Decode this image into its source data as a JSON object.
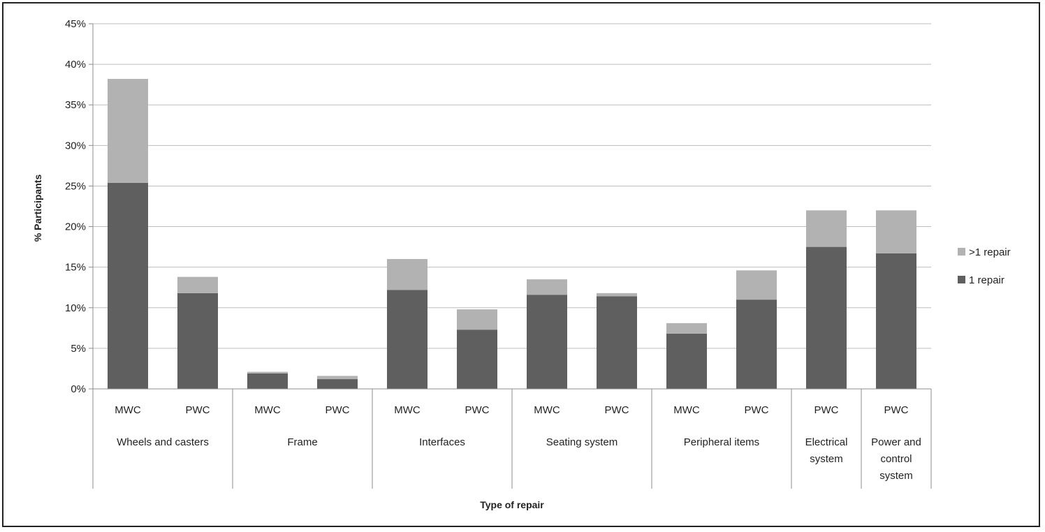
{
  "chart_data": {
    "type": "bar",
    "stacked": true,
    "groups": [
      {
        "label": "Wheels and casters",
        "categories": [
          "MWC",
          "PWC"
        ]
      },
      {
        "label": "Frame",
        "categories": [
          "MWC",
          "PWC"
        ]
      },
      {
        "label": "Interfaces",
        "categories": [
          "MWC",
          "PWC"
        ]
      },
      {
        "label": "Seating system",
        "categories": [
          "MWC",
          "PWC"
        ]
      },
      {
        "label": "Peripheral items",
        "categories": [
          "MWC",
          "PWC"
        ]
      },
      {
        "label": "Electrical system",
        "label_lines": [
          "Electrical",
          "system"
        ],
        "categories": [
          "PWC"
        ]
      },
      {
        "label": "Power and control system",
        "label_lines": [
          "Power and",
          "control",
          "system"
        ],
        "categories": [
          "PWC"
        ]
      }
    ],
    "categories": [
      "MWC",
      "PWC",
      "MWC",
      "PWC",
      "MWC",
      "PWC",
      "MWC",
      "PWC",
      "MWC",
      "PWC",
      "PWC",
      "PWC"
    ],
    "series": [
      {
        "name": "1 repair",
        "color": "#5f5f5f",
        "values": [
          25.4,
          11.8,
          1.9,
          1.2,
          12.2,
          7.3,
          11.6,
          11.4,
          6.8,
          11.0,
          17.5,
          16.7
        ]
      },
      {
        "name": ">1 repair",
        "color": "#b2b2b2",
        "values": [
          12.8,
          2.0,
          0.2,
          0.4,
          3.8,
          2.5,
          1.9,
          0.4,
          1.3,
          3.6,
          4.5,
          5.3
        ]
      }
    ],
    "xlabel": "Type of repair",
    "ylabel": "% Participants",
    "ylim": [
      0,
      45
    ],
    "yticks": [
      "0%",
      "5%",
      "10%",
      "15%",
      "20%",
      "25%",
      "30%",
      "35%",
      "40%",
      "45%"
    ],
    "grid": true,
    "legend_position": "right"
  }
}
